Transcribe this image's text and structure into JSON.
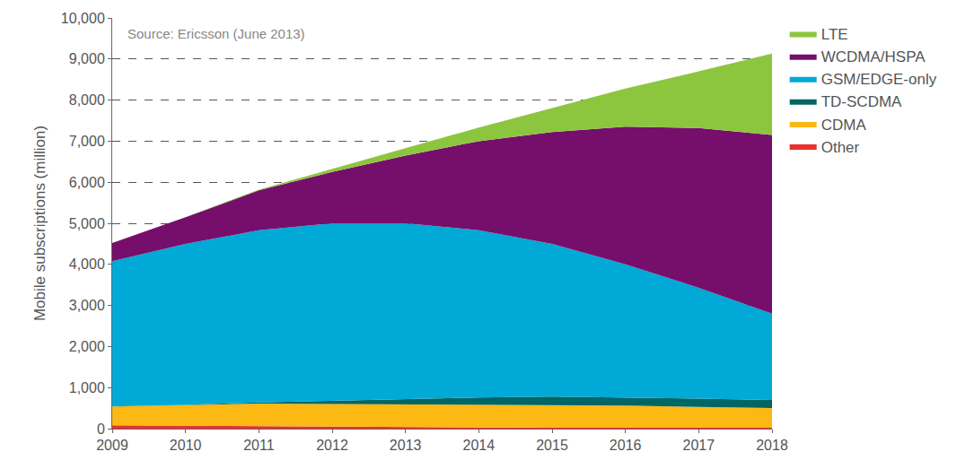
{
  "chart_data": {
    "type": "area",
    "stacked": true,
    "grid": true,
    "legend": "right",
    "y_label": "Mobile subscriptions (million)",
    "annotations": [
      "Source: Ericsson (June 2013)"
    ],
    "x": [
      2009,
      2010,
      2011,
      2012,
      2013,
      2014,
      2015,
      2016,
      2017,
      2018
    ],
    "xlim": [
      2009,
      2018
    ],
    "xticks": [
      2009,
      2010,
      2011,
      2012,
      2013,
      2014,
      2015,
      2016,
      2017,
      2018
    ],
    "ylim": [
      0,
      10000
    ],
    "yticks": [
      0,
      {
        "value": 1000,
        "label": "1,000"
      },
      {
        "value": 2000,
        "label": "2,000"
      },
      {
        "value": 3000,
        "label": "3,000"
      },
      {
        "value": 4000,
        "label": "4,000"
      },
      {
        "value": 5000,
        "label": "5,000"
      },
      {
        "value": 6000,
        "label": "6,000"
      },
      {
        "value": 7000,
        "label": "7,000"
      },
      {
        "value": 8000,
        "label": "8,000"
      },
      {
        "value": 9000,
        "label": "9,000"
      },
      {
        "value": 10000,
        "label": "10,000"
      }
    ],
    "series": [
      {
        "name": "Other",
        "color": "#e8312f",
        "values": [
          80,
          70,
          50,
          40,
          30,
          30,
          20,
          20,
          20,
          20
        ]
      },
      {
        "name": "CDMA",
        "color": "#fcb813",
        "values": [
          460,
          510,
          560,
          560,
          560,
          550,
          550,
          540,
          510,
          480
        ]
      },
      {
        "name": "TD-SCDMA",
        "color": "#006664",
        "values": [
          0,
          0,
          30,
          80,
          130,
          180,
          210,
          200,
          200,
          200
        ]
      },
      {
        "name": "GSM/EDGE-only",
        "color": "#00a9d6",
        "values": [
          3540,
          3920,
          4190,
          4320,
          4280,
          4070,
          3720,
          3240,
          2700,
          2100
        ]
      },
      {
        "name": "WCDMA/HSPA",
        "color": "#760f6c",
        "values": [
          440,
          650,
          970,
          1250,
          1650,
          2170,
          2720,
          3350,
          3890,
          4350
        ]
      },
      {
        "name": "LTE",
        "color": "#8cc63f",
        "values": [
          0,
          0,
          20,
          80,
          180,
          330,
          580,
          930,
          1380,
          1980
        ]
      }
    ]
  }
}
